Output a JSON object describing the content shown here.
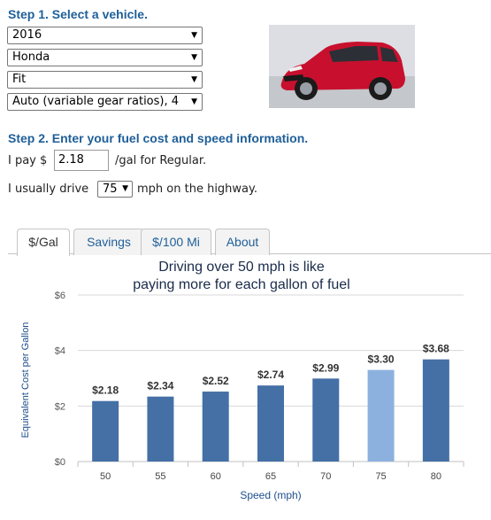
{
  "step1": {
    "heading": "Step 1. Select a vehicle.",
    "year": "2016",
    "make": "Honda",
    "model": "Fit",
    "transmission": "Auto (variable gear ratios), 4"
  },
  "step2": {
    "heading": "Step 2. Enter your fuel cost and speed information.",
    "pay_prefix": "I pay $",
    "fuel_cost": "2.18",
    "pay_suffix": "/gal for Regular.",
    "drive_prefix": "I usually drive",
    "speed": "75",
    "drive_suffix": "mph on the highway."
  },
  "tabs": [
    {
      "label": "$/Gal",
      "active": true
    },
    {
      "label": "Savings",
      "active": false
    },
    {
      "label": "$/100 Mi",
      "active": false
    },
    {
      "label": "About",
      "active": false
    }
  ],
  "colors": {
    "bar": "#4470a6",
    "bar_selected": "#8db1df",
    "heading": "#1f5f99"
  },
  "chart_data": {
    "type": "bar",
    "title_lines": [
      "Driving over 50 mph is like",
      "paying more for each gallon of fuel"
    ],
    "xlabel": "Speed (mph)",
    "ylabel": "Equivalent Cost per Gallon",
    "categories": [
      "50",
      "55",
      "60",
      "65",
      "70",
      "75",
      "80"
    ],
    "values": [
      2.18,
      2.34,
      2.52,
      2.74,
      2.99,
      3.3,
      3.68
    ],
    "value_labels": [
      "$2.18",
      "$2.34",
      "$2.52",
      "$2.74",
      "$2.99",
      "$3.30",
      "$3.68"
    ],
    "yticks": [
      0,
      2,
      4,
      6
    ],
    "ytick_labels": [
      "$0",
      "$2",
      "$4",
      "$6"
    ],
    "ylim": [
      0,
      6
    ],
    "highlight_category": "75",
    "grid": true
  }
}
